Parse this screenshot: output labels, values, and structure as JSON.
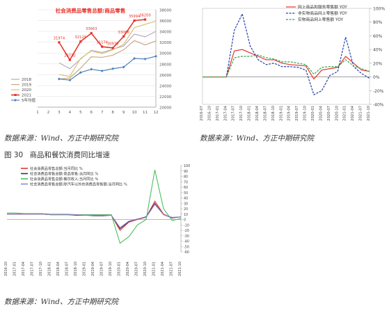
{
  "figure": {
    "number": "图 30",
    "title": "商品和餐饮消费同比增速"
  },
  "sources": {
    "panel_a": "数据来源：Wind、方正中期研究院",
    "panel_b": "数据来源：Wind、方正中期研究院",
    "panel_c": "数据来源：Wind、方正中期研究院"
  },
  "chart_data": [
    {
      "type": "line",
      "title": "社会消费品零售总额:商品零售",
      "x": [
        1,
        2,
        3,
        4,
        5,
        6,
        7,
        8,
        9,
        10,
        11,
        12
      ],
      "xticks": [
        "1",
        "2",
        "3",
        "4",
        "5",
        "6",
        "7",
        "8",
        "9",
        "10",
        "11",
        "12"
      ],
      "ylim": [
        20000,
        38000
      ],
      "yticks": [
        20000,
        22000,
        24000,
        26000,
        28000,
        30000,
        32000,
        34000,
        36000,
        38000
      ],
      "legend_position": "bottom-left",
      "colors": {
        "2018": "#b7a7c8",
        "2019": "#c8a98a",
        "2020": "#d8c56a",
        "2021": "#e8332a",
        "5年均值": "#4f81bd"
      },
      "series": [
        {
          "name": "2018",
          "x": [
            3,
            4,
            5,
            6,
            7,
            8,
            9,
            10,
            11,
            12
          ],
          "values": [
            28200,
            27100,
            28900,
            30500,
            30100,
            30700,
            31300,
            33500,
            33000,
            34000
          ]
        },
        {
          "name": "2019",
          "x": [
            3,
            4,
            5,
            6,
            7,
            8,
            9,
            10,
            11,
            12
          ],
          "values": [
            25200,
            25400,
            27200,
            29300,
            29200,
            29600,
            30600,
            32300,
            31500,
            32200
          ]
        },
        {
          "name": "2020",
          "x": [
            3,
            4,
            5,
            6,
            7,
            8,
            9,
            10,
            11,
            12
          ],
          "values": [
            26000,
            25700,
            29000,
            30400,
            29900,
            30600,
            31600,
            34700,
            35300,
            35900
          ]
        },
        {
          "name": "2021",
          "x": [
            3,
            4,
            5,
            6,
            7,
            8,
            9,
            10,
            11
          ],
          "values": [
            31974,
            28730,
            32129,
            33663,
            31174,
            30939,
            33066,
            35994,
            36200
          ],
          "labels": [
            "31974",
            "28730",
            "32129",
            "33663",
            "31174",
            "30939",
            "33066",
            "35994",
            "36200"
          ]
        },
        {
          "name": "5年均值",
          "x": [
            3,
            4,
            5,
            6,
            7,
            8,
            9,
            10,
            11,
            12
          ],
          "values": [
            25200,
            25000,
            26400,
            27000,
            26700,
            27100,
            27400,
            29000,
            28900,
            29400
          ]
        }
      ]
    },
    {
      "type": "line",
      "title": "",
      "x": [
        "2016-07",
        "2016-10",
        "2017-01",
        "2017-04",
        "2017-07",
        "2017-10",
        "2018-01",
        "2018-04",
        "2018-07",
        "2018-10",
        "2019-01",
        "2019-04",
        "2019-07",
        "2019-10",
        "2020-01",
        "2020-04",
        "2020-07",
        "2020-10",
        "2021-01",
        "2021-04",
        "2021-07",
        "2021-10"
      ],
      "ylim": [
        -40,
        100
      ],
      "yticks": [
        -40,
        -20,
        0,
        20,
        40,
        60,
        80,
        100
      ],
      "ytick_labels": [
        "-40%",
        "-20%",
        "0%",
        "20%",
        "40%",
        "60%",
        "80%",
        "100%"
      ],
      "legend_position": "top-right",
      "colors": {
        "s1": "#e8332a",
        "s2": "#1f3fb0",
        "s3": "#2ea84a"
      },
      "series": [
        {
          "name": "网上商品和服务零售额 YOY",
          "style": "solid",
          "values": [
            0,
            0,
            0,
            0,
            38,
            40,
            35,
            30,
            25,
            25,
            20,
            18,
            17,
            16,
            -3,
            10,
            12,
            14,
            30,
            20,
            10,
            8
          ]
        },
        {
          "name": "非实物商品网上零售额 YOY",
          "style": "dashed",
          "values": [
            0,
            0,
            0,
            0,
            68,
            92,
            45,
            25,
            18,
            20,
            15,
            15,
            14,
            10,
            -26,
            -20,
            2,
            8,
            58,
            15,
            5,
            -2
          ]
        },
        {
          "name": "实物商品网上零售额 YOY",
          "style": "dashed",
          "values": [
            0,
            0,
            0,
            0,
            28,
            30,
            30,
            32,
            28,
            26,
            22,
            22,
            20,
            18,
            4,
            14,
            15,
            15,
            25,
            16,
            12,
            8
          ]
        }
      ]
    },
    {
      "type": "line",
      "title": "",
      "x": [
        "2016-10",
        "2017-01",
        "2017-04",
        "2017-07",
        "2017-10",
        "2018-01",
        "2018-04",
        "2018-07",
        "2018-10",
        "2019-01",
        "2019-04",
        "2019-07",
        "2019-10",
        "2020-01",
        "2020-04",
        "2020-07",
        "2020-10",
        "2021-01",
        "2021-04",
        "2021-07",
        "2021-10"
      ],
      "ylim": [
        -60,
        100
      ],
      "yticks": [
        -60,
        -50,
        -40,
        -30,
        -20,
        -10,
        0,
        10,
        20,
        30,
        40,
        50,
        60,
        70,
        80,
        90,
        100
      ],
      "legend_position": "top-left",
      "colors": {
        "s1": "#e8332a",
        "s2": "#3a2a6e",
        "s3": "#4cc05c",
        "s4": "#9a84c4"
      },
      "series": [
        {
          "name": "社会消费品零售总额:当月同比 %",
          "values": [
            10,
            10,
            10,
            10,
            10,
            9,
            9,
            9,
            8,
            8,
            8,
            7,
            8,
            -20,
            -5,
            0,
            4,
            34,
            10,
            3,
            5
          ]
        },
        {
          "name": "社会消费品零售总额:商品零售:当月同比 %",
          "values": [
            10,
            10,
            10,
            10,
            10,
            9,
            9,
            9,
            8,
            8,
            7,
            7,
            8,
            -17,
            -4,
            1,
            5,
            30,
            9,
            3,
            5
          ]
        },
        {
          "name": "社会消费品零售总额:餐饮收入:当月同比 %",
          "values": [
            12,
            12,
            11,
            11,
            11,
            10,
            10,
            10,
            9,
            9,
            9,
            9,
            9,
            -44,
            -32,
            -10,
            0,
            92,
            20,
            -2,
            2
          ]
        },
        {
          "name": "社会消费品零售总额:除汽车以外的消费品零售额:当月同比 %",
          "values": [
            10,
            10,
            10,
            10,
            10,
            9,
            9,
            9,
            9,
            8,
            8,
            8,
            8,
            -15,
            -3,
            1,
            4,
            28,
            9,
            4,
            5
          ]
        }
      ]
    }
  ]
}
